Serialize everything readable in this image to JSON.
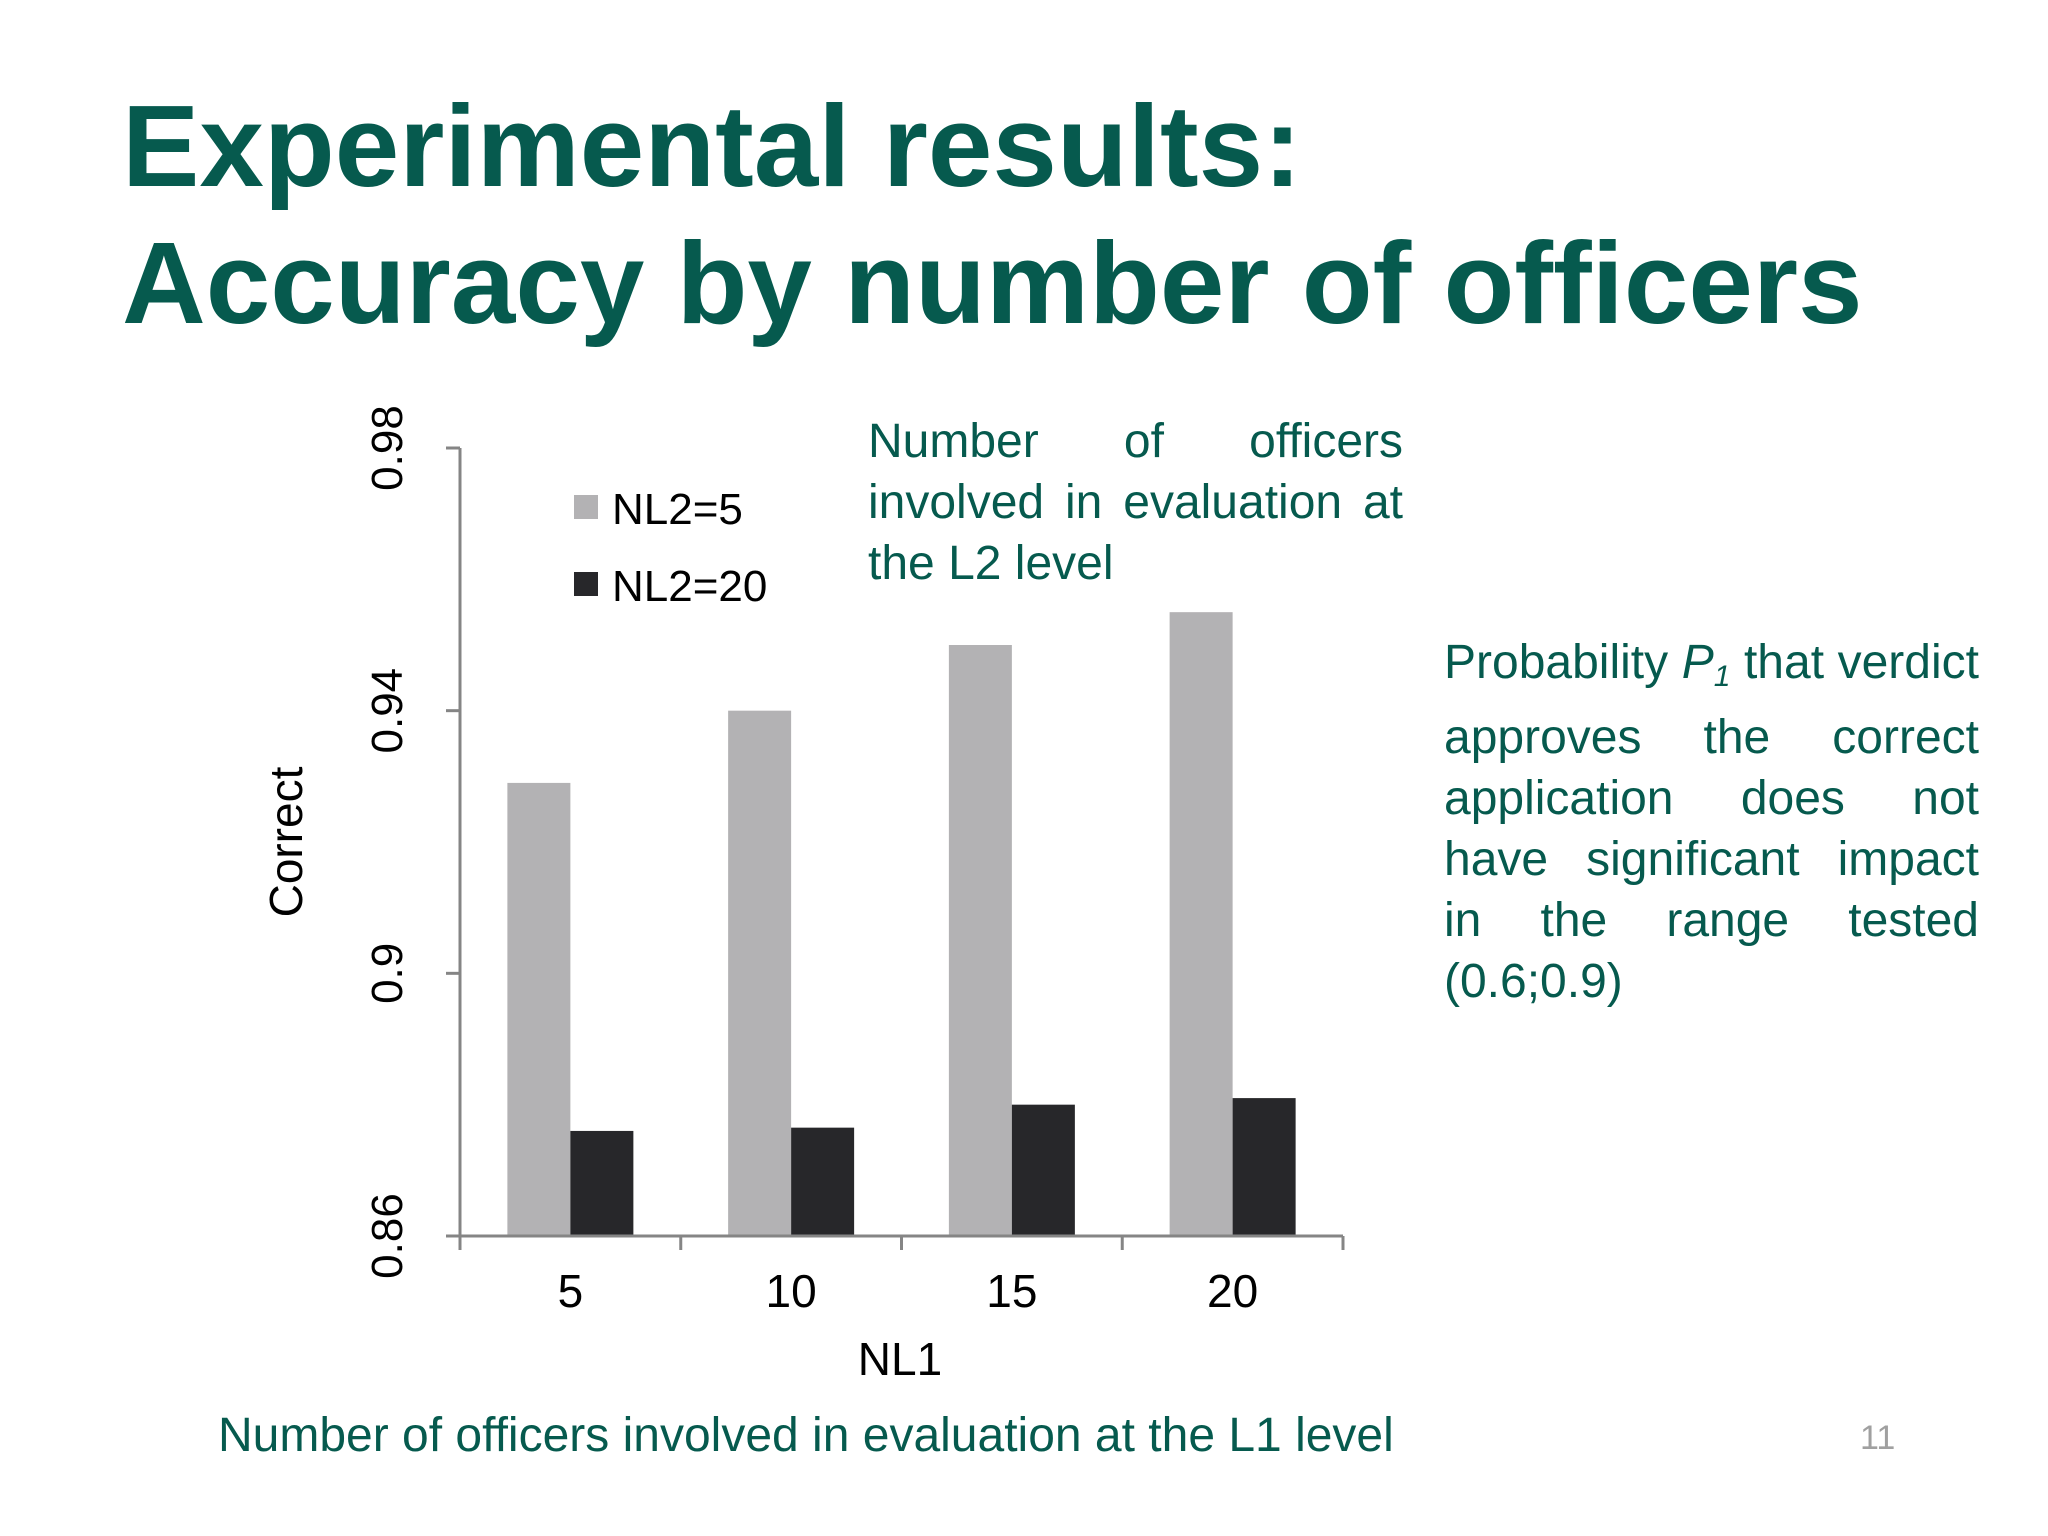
{
  "title": {
    "line1": "Experimental results:",
    "line2": "Accuracy by number of officers"
  },
  "annotations": {
    "l2_level": "Number of officers involved in evaluation at the L2 level",
    "p1_before": "Probability",
    "p1_symbol": "P",
    "p1_subscript": "1",
    "p1_after": "that verdict approves the correct application does not have significant impact in the range tested (0.6;0.9)",
    "l1_level": "Number of officers involved in evaluation at the L1 level"
  },
  "page_number": "11",
  "chart_data": {
    "type": "bar",
    "categories": [
      "5",
      "10",
      "15",
      "20"
    ],
    "series": [
      {
        "name": "NL2=5",
        "values": [
          0.929,
          0.94,
          0.95,
          0.955
        ],
        "color": "#b3b2b4"
      },
      {
        "name": "NL2=20",
        "values": [
          0.876,
          0.8765,
          0.88,
          0.881
        ],
        "color": "#27272a"
      }
    ],
    "xlabel": "NL1",
    "ylabel": "Correct",
    "ylim": [
      0.86,
      0.98
    ],
    "yticks": [
      0.86,
      0.9,
      0.94,
      0.98
    ],
    "ytick_labels": [
      "0.86",
      "0.9",
      "0.94",
      "0.98"
    ],
    "grid": false,
    "legend_position": "top-left"
  }
}
